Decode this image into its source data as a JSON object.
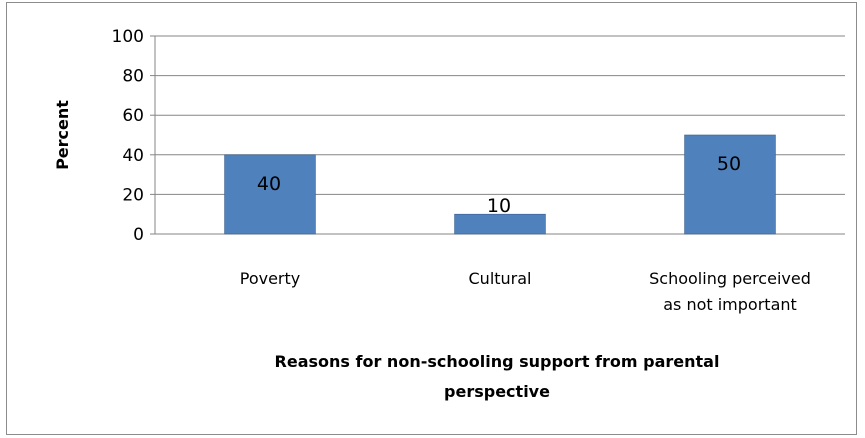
{
  "chart_data": {
    "type": "bar",
    "categories": [
      "Poverty",
      "Cultural",
      "Schooling perceived as not important"
    ],
    "category_label_lines": [
      [
        "Poverty"
      ],
      [
        "Cultural"
      ],
      [
        "Schooling perceived",
        "as not important"
      ]
    ],
    "values": [
      40,
      10,
      50
    ],
    "data_labels": [
      "40",
      "10",
      "50"
    ],
    "ylabel": "Percent",
    "xlabel_lines": [
      "Reasons for non-schooling  support from parental",
      "perspective"
    ],
    "ylim": [
      0,
      100
    ],
    "yticks": [
      0,
      20,
      40,
      60,
      80,
      100
    ],
    "grid": true,
    "legend": "none",
    "colors": {
      "bar": "#4f81bd",
      "bar_edge": "#385d8a",
      "grid": "#868686",
      "axis": "#868686",
      "frame": "#8c8c8c"
    }
  }
}
